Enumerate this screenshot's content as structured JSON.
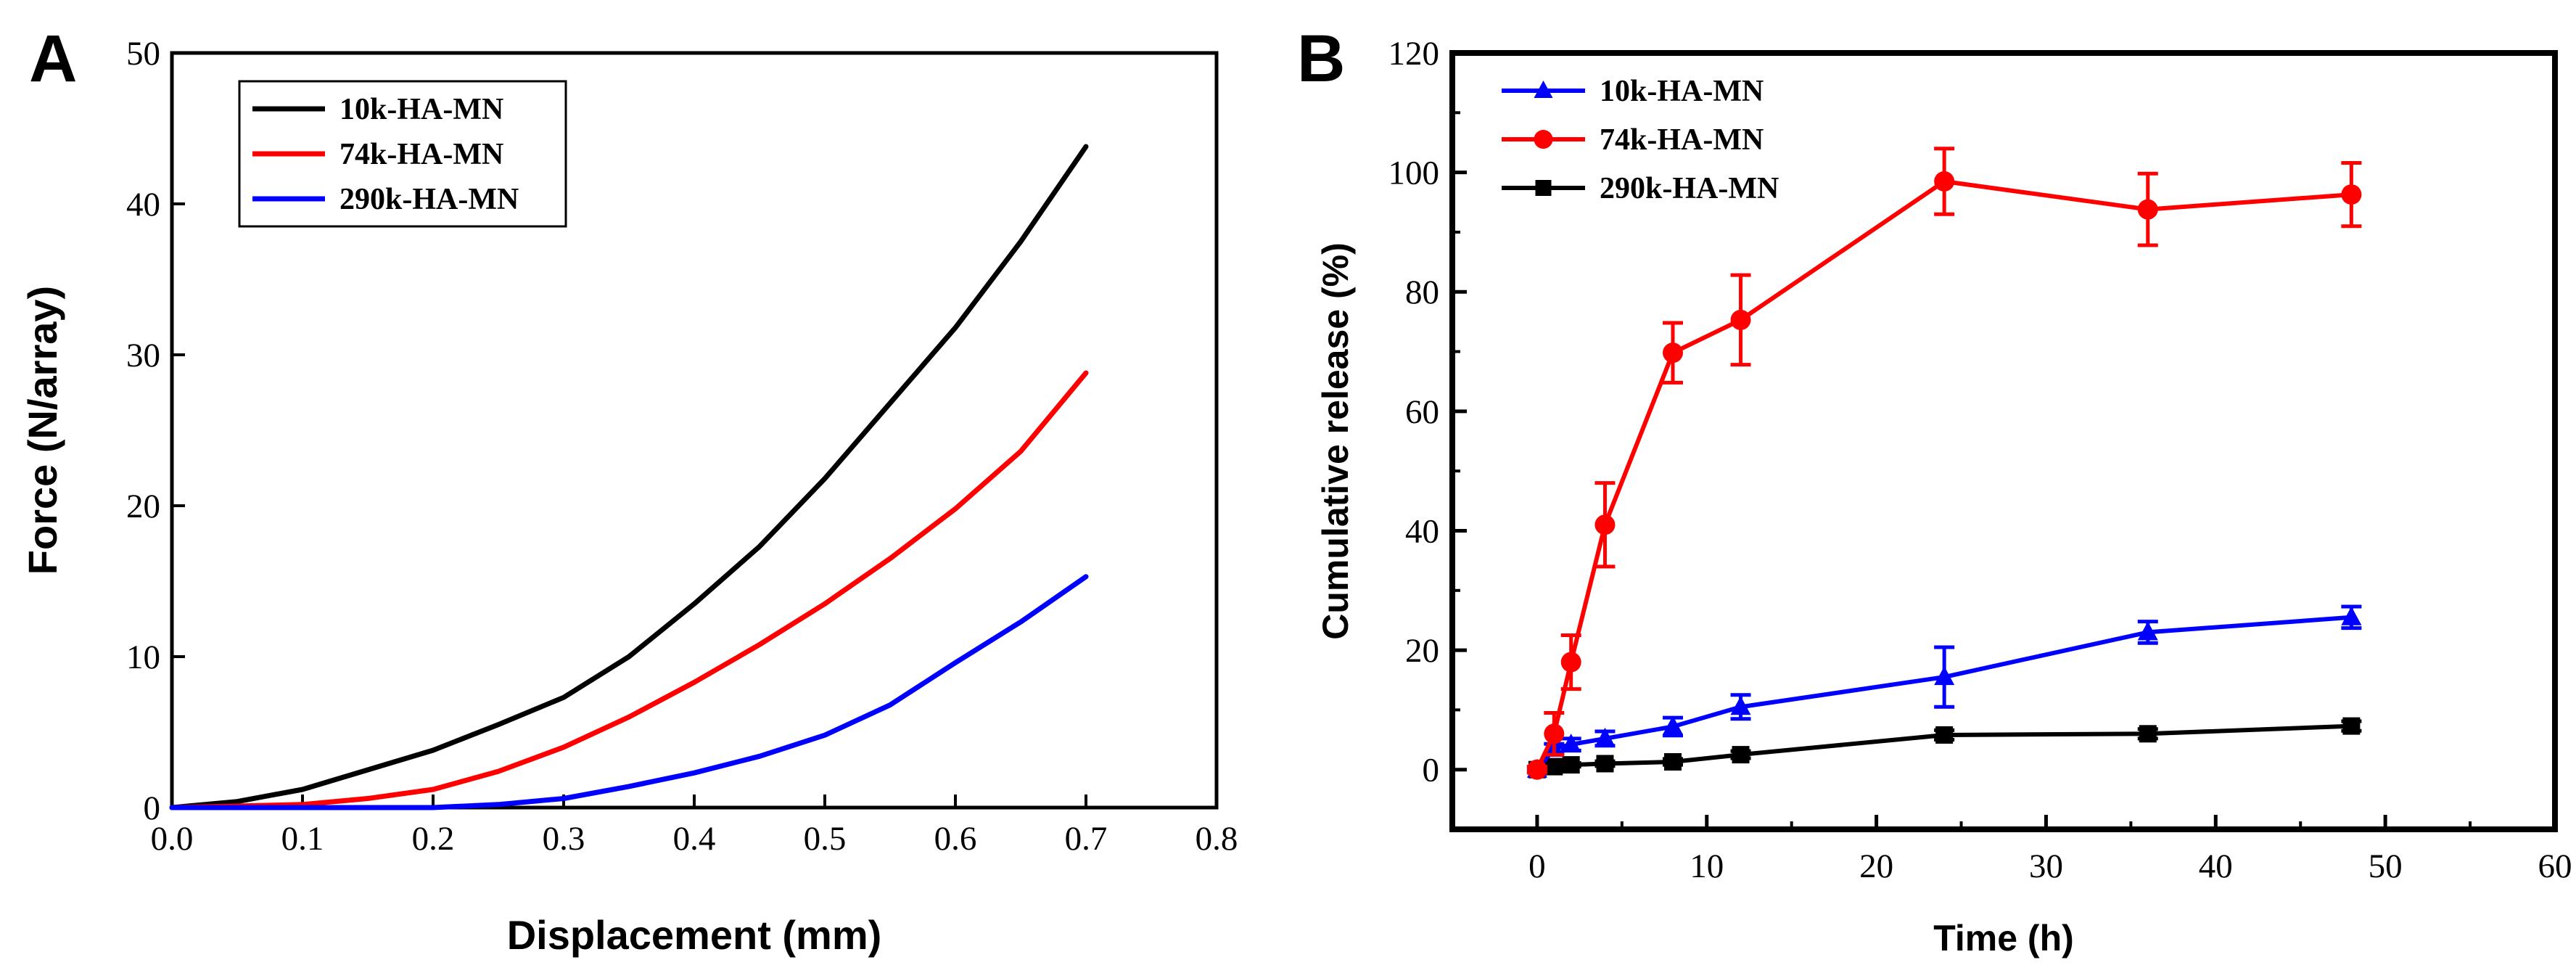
{
  "panels": {
    "a_letter": "A",
    "b_letter": "B"
  },
  "chart_data": [
    {
      "panel": "A",
      "type": "line",
      "title": "",
      "xlabel": "Displacement (mm)",
      "ylabel": "Force (N/array)",
      "xlim": [
        0,
        0.8
      ],
      "ylim": [
        0,
        50
      ],
      "xticks": [
        0.0,
        0.1,
        0.2,
        0.3,
        0.4,
        0.5,
        0.6,
        0.7,
        0.8
      ],
      "xtick_labels": [
        "0.0",
        "0.1",
        "0.2",
        "0.3",
        "0.4",
        "0.5",
        "0.6",
        "0.7",
        "0.8"
      ],
      "yticks": [
        0,
        10,
        20,
        30,
        40,
        50
      ],
      "ytick_labels": [
        "0",
        "10",
        "20",
        "30",
        "40",
        "50"
      ],
      "grid": false,
      "legend_position": "top-left",
      "series": [
        {
          "name": "10k-HA-MN",
          "color": "#000000",
          "x": [
            0,
            0.05,
            0.1,
            0.15,
            0.2,
            0.25,
            0.3,
            0.35,
            0.4,
            0.45,
            0.5,
            0.55,
            0.6,
            0.65,
            0.7
          ],
          "y": [
            0,
            0.4,
            1.2,
            2.5,
            3.8,
            5.5,
            7.3,
            10.0,
            13.5,
            17.3,
            21.8,
            26.8,
            31.8,
            37.5,
            43.8
          ]
        },
        {
          "name": "74k-HA-MN",
          "color": "#ff0000",
          "x": [
            0,
            0.1,
            0.15,
            0.2,
            0.25,
            0.3,
            0.35,
            0.4,
            0.45,
            0.5,
            0.55,
            0.6,
            0.65,
            0.7
          ],
          "y": [
            0,
            0.2,
            0.6,
            1.2,
            2.4,
            4.0,
            6.0,
            8.3,
            10.8,
            13.5,
            16.5,
            19.8,
            23.6,
            28.8
          ]
        },
        {
          "name": "290k-HA-MN",
          "color": "#0000ff",
          "x": [
            0,
            0.2,
            0.25,
            0.3,
            0.35,
            0.4,
            0.45,
            0.5,
            0.55,
            0.6,
            0.65,
            0.7
          ],
          "y": [
            0,
            0,
            0.2,
            0.6,
            1.4,
            2.3,
            3.4,
            4.8,
            6.8,
            9.6,
            12.3,
            15.3
          ]
        }
      ]
    },
    {
      "panel": "B",
      "type": "line",
      "title": "",
      "xlabel": "Time (h)",
      "ylabel": "Cumulative release (%)",
      "xlim": [
        -5,
        60
      ],
      "ylim": [
        -10,
        120
      ],
      "xticks": [
        0,
        10,
        20,
        30,
        40,
        50,
        60
      ],
      "xtick_labels": [
        "0",
        "10",
        "20",
        "30",
        "40",
        "50",
        "60"
      ],
      "yticks": [
        0,
        20,
        40,
        60,
        80,
        100,
        120
      ],
      "ytick_labels": [
        "0",
        "20",
        "40",
        "60",
        "80",
        "100",
        "120"
      ],
      "grid": false,
      "legend_position": "top-left",
      "series": [
        {
          "name": "10k-HA-MN",
          "color": "#0000ff",
          "marker": "triangle",
          "x": [
            0,
            1,
            2,
            4,
            8,
            12,
            24,
            36,
            48
          ],
          "y": [
            0,
            3.5,
            4.2,
            5.2,
            7.2,
            10.5,
            15.5,
            23.0,
            25.5
          ],
          "error": [
            0.5,
            0.8,
            1.0,
            1.2,
            1.5,
            2.0,
            5.0,
            1.8,
            1.8
          ]
        },
        {
          "name": "74k-HA-MN",
          "color": "#ff0000",
          "marker": "circle",
          "x": [
            0,
            1,
            2,
            4,
            8,
            12,
            24,
            36,
            48
          ],
          "y": [
            0,
            6.0,
            18.0,
            41.0,
            69.8,
            75.3,
            98.5,
            93.8,
            96.3
          ],
          "error": [
            0.5,
            3.5,
            4.5,
            7.0,
            5.0,
            7.5,
            5.5,
            6.0,
            5.3
          ]
        },
        {
          "name": "290k-HA-MN",
          "color": "#000000",
          "marker": "square",
          "x": [
            0,
            1,
            2,
            4,
            8,
            12,
            24,
            36,
            48
          ],
          "y": [
            0,
            0.5,
            0.8,
            1.0,
            1.3,
            2.5,
            5.8,
            6.0,
            7.3
          ],
          "error": [
            0.3,
            0.3,
            0.3,
            0.4,
            0.5,
            0.6,
            0.8,
            0.8,
            0.8
          ]
        }
      ]
    }
  ]
}
